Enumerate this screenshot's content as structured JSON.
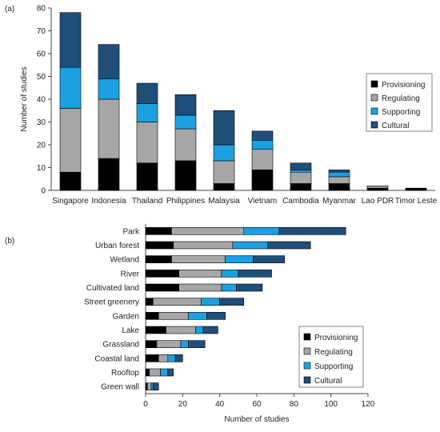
{
  "panel_labels": [
    "(a)",
    "(b)"
  ],
  "colors": {
    "Provisioning": "#000000",
    "Regulating": "#a6a6a6",
    "Supporting": "#1ba1e2",
    "Cultural": "#1f4e79",
    "axis": "#444444"
  },
  "chart_data": [
    {
      "type": "bar",
      "orientation": "vertical",
      "stacked": true,
      "title": "",
      "xlabel": "",
      "ylabel": "Number of studies",
      "ylim": [
        0,
        80
      ],
      "yticks": [
        0,
        10,
        20,
        30,
        40,
        50,
        60,
        70,
        80
      ],
      "legend_position": "right",
      "categories": [
        "Singapore",
        "Indonesia",
        "Thailand",
        "Philippines",
        "Malaysia",
        "Vietnam",
        "Cambodia",
        "Myanmar",
        "Lao PDR",
        "Timor Leste"
      ],
      "series": [
        {
          "name": "Provisioning",
          "values": [
            8,
            14,
            12,
            13,
            3,
            9,
            3,
            3,
            1,
            1
          ]
        },
        {
          "name": "Regulating",
          "values": [
            28,
            26,
            18,
            14,
            10,
            9,
            5,
            3,
            1,
            0
          ]
        },
        {
          "name": "Supporting",
          "values": [
            18,
            9,
            8,
            6,
            7,
            4,
            1,
            2,
            0,
            0
          ]
        },
        {
          "name": "Cultural",
          "values": [
            24,
            15,
            9,
            9,
            15,
            4,
            3,
            1,
            0,
            0
          ]
        }
      ]
    },
    {
      "type": "bar",
      "orientation": "horizontal",
      "stacked": true,
      "title": "",
      "xlabel": "Number of studies",
      "ylabel": "",
      "xlim": [
        0,
        120
      ],
      "xticks": [
        0,
        20,
        40,
        60,
        80,
        100,
        120
      ],
      "legend_position": "bottom-right",
      "categories": [
        "Park",
        "Urban forest",
        "Wetland",
        "River",
        "Cultivated land",
        "Street greenery",
        "Garden",
        "Lake",
        "Grassland",
        "Coastal land",
        "Rooftop",
        "Green wall"
      ],
      "series": [
        {
          "name": "Provisioning",
          "values": [
            14,
            15,
            14,
            18,
            18,
            4,
            7,
            11,
            6,
            7,
            2,
            1
          ]
        },
        {
          "name": "Regulating",
          "values": [
            39,
            32,
            29,
            23,
            23,
            26,
            16,
            16,
            13,
            5,
            6,
            2
          ]
        },
        {
          "name": "Supporting",
          "values": [
            19,
            19,
            15,
            9,
            8,
            10,
            10,
            4,
            4,
            4,
            4,
            1
          ]
        },
        {
          "name": "Cultural",
          "values": [
            36,
            23,
            17,
            18,
            14,
            13,
            10,
            8,
            9,
            4,
            3,
            3
          ]
        }
      ]
    }
  ]
}
